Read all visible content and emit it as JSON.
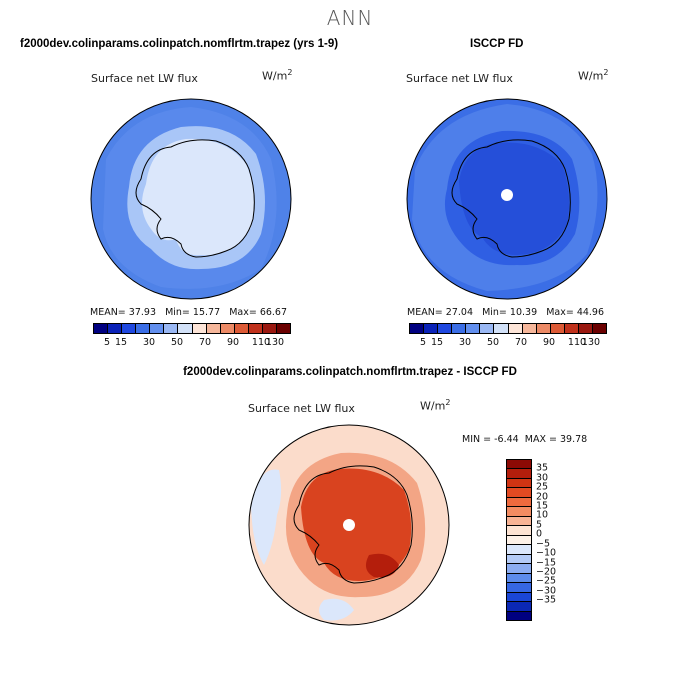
{
  "title": "ANN",
  "colors": {
    "coast": "#000000",
    "panel1": {
      "ocean": "#4f82e8",
      "ice_ring": "#a9c6f7",
      "interior": "#dbe7fb"
    },
    "panel2": {
      "ocean": "#3b6ee6",
      "interior": "#254fd9",
      "pole": "#ffffff"
    },
    "panel3": {
      "ocean": "#fbdccb",
      "ice_ring": "#ee9a78",
      "interior": "#d9431f",
      "pole": "#ffffff"
    }
  },
  "chart_data": [
    {
      "type": "heatmap",
      "name": "model",
      "header": "f2000dev.colinparams.colinpatch.nomflrtm.trapez (yrs 1-9)",
      "label": "Surface net LW flux",
      "units": "W/m",
      "units_exp": "2",
      "stats": {
        "mean_label": "MEAN=",
        "mean": "37.93",
        "min_label": "Min=",
        "min": "15.77",
        "max_label": "Max=",
        "max": "66.67"
      },
      "colorbar_ticks": [
        "5",
        "15",
        "30",
        "50",
        "70",
        "90",
        "110",
        "130"
      ],
      "colorbar_colors": [
        "#000080",
        "#0a22b8",
        "#1f48e0",
        "#3b6ee6",
        "#628fee",
        "#9ab8f4",
        "#d2e1f8",
        "#fde5d8",
        "#f6b79b",
        "#ec8a66",
        "#dc5a36",
        "#c0311c",
        "#9a1810",
        "#6b0000"
      ]
    },
    {
      "type": "heatmap",
      "name": "obs",
      "header": "ISCCP FD",
      "label": "Surface net LW flux",
      "units": "W/m",
      "units_exp": "2",
      "stats": {
        "mean_label": "MEAN=",
        "mean": "27.04",
        "min_label": "Min=",
        "min": "10.39",
        "max_label": "Max=",
        "max": "44.96"
      },
      "colorbar_ticks": [
        "5",
        "15",
        "30",
        "50",
        "70",
        "90",
        "110",
        "130"
      ],
      "colorbar_colors": [
        "#000080",
        "#0a22b8",
        "#1f48e0",
        "#3b6ee6",
        "#628fee",
        "#9ab8f4",
        "#d2e1f8",
        "#fde5d8",
        "#f6b79b",
        "#ec8a66",
        "#dc5a36",
        "#c0311c",
        "#9a1810",
        "#6b0000"
      ]
    },
    {
      "type": "heatmap",
      "name": "difference",
      "header": "f2000dev.colinparams.colinpatch.nomflrtm.trapez - ISCCP FD",
      "label": "Surface net LW flux",
      "units": "W/m",
      "units_exp": "2",
      "stats": {
        "min_label": "MIN =",
        "min": "-6.44",
        "max_label": "MAX =",
        "max": "39.78"
      },
      "colorbar_ticks": [
        "35",
        "30",
        "25",
        "20",
        "15",
        "10",
        "5",
        "0",
        "−5",
        "−10",
        "−15",
        "−20",
        "−25",
        "−30",
        "−35"
      ],
      "colorbar_colors": [
        "#8c0a05",
        "#b41e0c",
        "#d03413",
        "#e24a22",
        "#ee6a3e",
        "#f38c62",
        "#f8b394",
        "#fde3d2",
        "#fdf1e7",
        "#dbe7fb",
        "#b4cbf6",
        "#8cadf1",
        "#5d8ceb",
        "#3667e3",
        "#1a46d6",
        "#0b28b5",
        "#000080"
      ]
    }
  ]
}
